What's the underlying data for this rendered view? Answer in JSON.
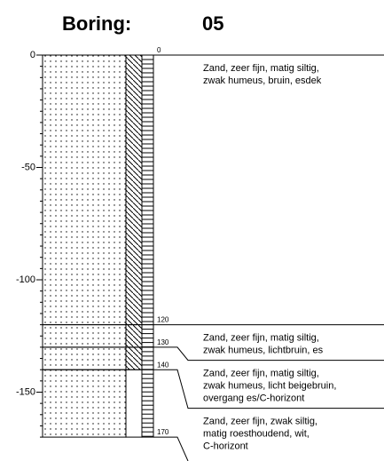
{
  "header": {
    "title": "Boring:",
    "id": "05"
  },
  "axis": {
    "ticks": [
      0,
      -50,
      -100,
      -150
    ]
  },
  "layers": [
    {
      "top": 0,
      "bottom": 120,
      "description": [
        "Zand, zeer fijn, matig siltig,",
        "zwak humeus, bruin, esdek"
      ]
    },
    {
      "top": 120,
      "bottom": 130,
      "description": [
        "Zand, zeer fijn, matig siltig,",
        "zwak humeus, lichtbruin, es"
      ]
    },
    {
      "top": 130,
      "bottom": 140,
      "description": [
        "Zand, zeer fijn, matig siltig,",
        "zwak humeus, licht beigebruin,",
        "overgang es/C-horizont"
      ]
    },
    {
      "top": 140,
      "bottom": 170,
      "description": [
        "Zand, zeer fijn, zwak siltig,",
        "matig roesthoudend, wit,",
        "C-horizont"
      ]
    }
  ]
}
